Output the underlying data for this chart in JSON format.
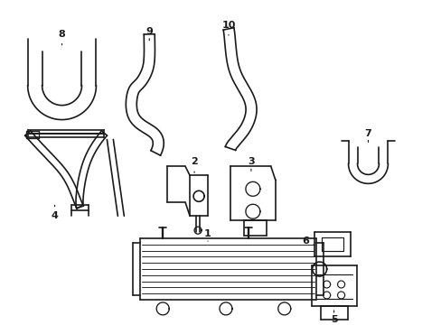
{
  "background_color": "#ffffff",
  "line_color": "#1a1a1a",
  "line_width": 1.2,
  "fig_width": 4.89,
  "fig_height": 3.6
}
